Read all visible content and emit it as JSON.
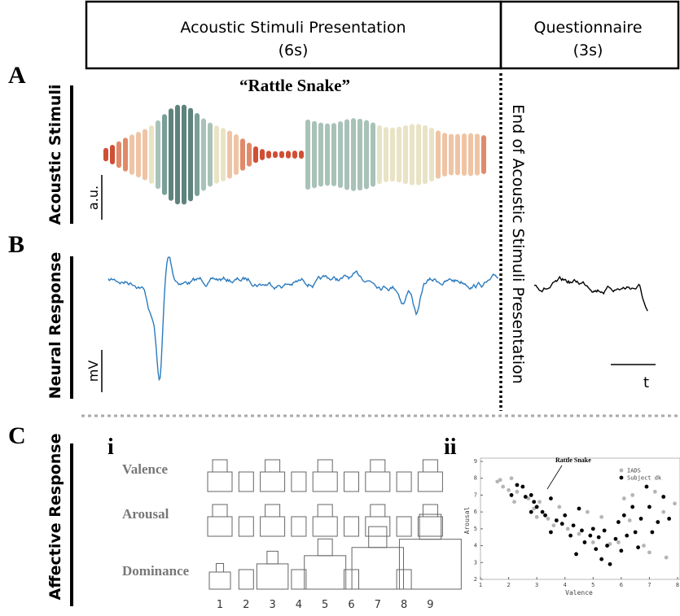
{
  "header": {
    "stimuli": {
      "title": "Acoustic Stimuli Presentation",
      "duration": "(6s)"
    },
    "questionnaire": {
      "title": "Questionnaire",
      "duration": "(3s)"
    }
  },
  "panels": {
    "a": {
      "label": "A",
      "axis_title": "Acoustic Stimuli",
      "stimulus": "“Rattle Snake”",
      "scale": "a.u."
    },
    "b": {
      "label": "B",
      "axis_title": "Neural Response",
      "scale": "mV",
      "time": "t"
    },
    "c": {
      "label": "C",
      "axis_title": "Affective Response",
      "sub_i": "i",
      "sub_ii": "ii",
      "scales": [
        "Valence",
        "Arousal",
        "Dominance"
      ],
      "ratings": [
        1,
        2,
        3,
        4,
        5,
        6,
        7,
        8,
        9
      ]
    }
  },
  "end_marker": "End of Acoustic Stimuli Presentation",
  "chart_data": {
    "type": "scatter",
    "xlabel": "Valence",
    "ylabel": "Arousal",
    "annotation": "Rattle Snake",
    "xlim": [
      1,
      8
    ],
    "xticks": [
      1,
      2,
      3,
      4,
      5,
      6,
      7,
      8
    ],
    "ylim": [
      2,
      9
    ],
    "yticks": [
      2,
      3,
      4,
      5,
      6,
      7,
      8,
      9
    ],
    "series": [
      {
        "name": "IADS",
        "color": "#b5b5b5",
        "x": [
          1.6,
          1.7,
          1.8,
          2.1,
          2.0,
          2.2,
          2.3,
          2.7,
          2.9,
          3.1,
          3.0,
          3.4,
          3.6,
          4.1,
          4.5,
          5.0,
          5.3,
          5.6,
          5.9,
          6.1,
          6.3,
          6.8,
          7.0,
          7.2,
          7.5,
          7.6,
          7.9,
          6.4,
          3.8,
          4.8
        ],
        "values": [
          7.8,
          7.9,
          7.5,
          8.0,
          7.3,
          6.6,
          7.2,
          6.8,
          6.2,
          6.6,
          5.7,
          5.6,
          5.2,
          5.0,
          4.7,
          4.2,
          5.7,
          4.1,
          4.2,
          6.8,
          5.5,
          4.0,
          3.6,
          7.2,
          6.0,
          3.3,
          6.5,
          7.0,
          6.3,
          6.0
        ]
      },
      {
        "name": "Subject dk",
        "color": "#000000",
        "x": [
          2.1,
          2.3,
          2.5,
          2.6,
          2.8,
          2.9,
          3.0,
          3.2,
          3.3,
          3.5,
          3.7,
          3.9,
          4.0,
          4.2,
          4.3,
          4.4,
          4.6,
          4.7,
          4.9,
          5.0,
          5.1,
          5.2,
          5.3,
          5.4,
          5.5,
          5.6,
          5.8,
          5.9,
          6.0,
          6.1,
          6.2,
          6.4,
          6.5,
          6.6,
          6.7,
          6.9,
          7.0,
          7.1,
          7.3,
          7.5,
          7.7,
          3.5,
          2.8,
          4.5
        ],
        "values": [
          7.0,
          7.6,
          7.5,
          6.9,
          7.0,
          6.6,
          6.3,
          6.0,
          5.8,
          6.8,
          5.5,
          5.3,
          5.8,
          4.6,
          5.2,
          3.5,
          4.9,
          4.2,
          4.6,
          5.0,
          3.8,
          4.5,
          3.2,
          4.9,
          4.0,
          2.9,
          4.4,
          5.4,
          3.7,
          5.8,
          4.6,
          6.3,
          4.8,
          3.9,
          5.6,
          7.5,
          6.3,
          4.8,
          5.4,
          6.9,
          5.6,
          4.8,
          6.0,
          6.2
        ]
      }
    ]
  }
}
